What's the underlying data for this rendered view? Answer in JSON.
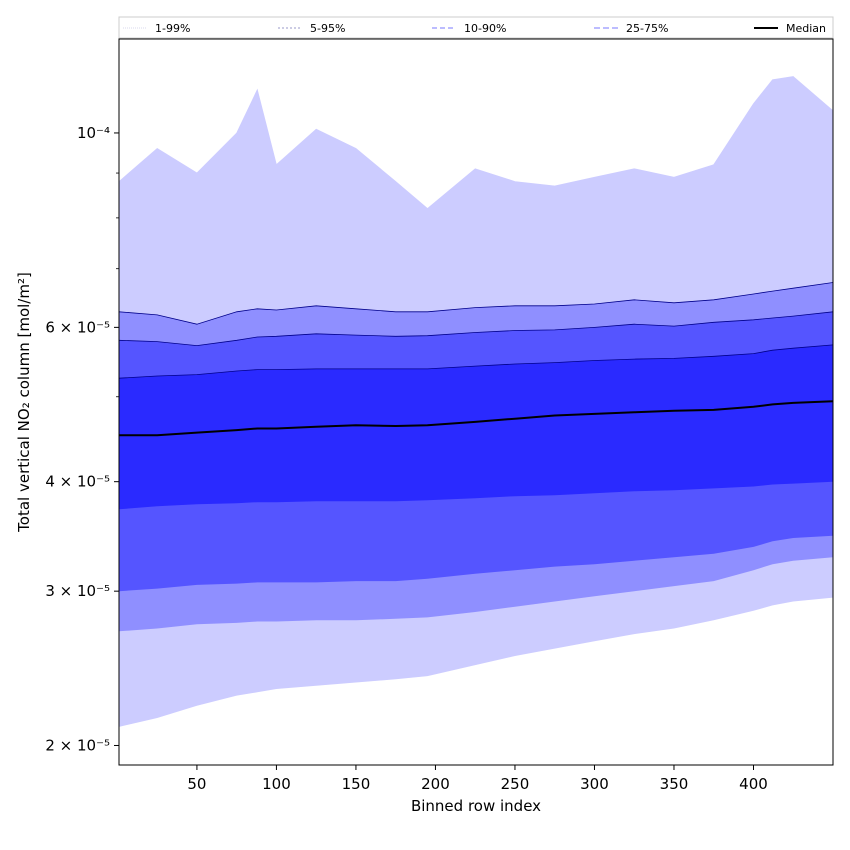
{
  "chart_data": {
    "type": "area",
    "title": "",
    "xlabel": "Binned row index",
    "ylabel": "Total vertical NO₂ column [mol/m²]",
    "xlim": [
      1,
      450
    ],
    "ylim": [
      1.9e-05,
      0.000128
    ],
    "yscale": "log",
    "x_ticks": [
      50,
      100,
      150,
      200,
      250,
      300,
      350,
      400
    ],
    "y_ticks": [
      {
        "value": 2e-05,
        "label": "2 × 10⁻⁵"
      },
      {
        "value": 3e-05,
        "label": "3 × 10⁻⁵"
      },
      {
        "value": 4e-05,
        "label": "4 × 10⁻⁵"
      },
      {
        "value": 6e-05,
        "label": "6 × 10⁻⁵"
      },
      {
        "value": 0.0001,
        "label": "10⁻⁴"
      }
    ],
    "grid": false,
    "legend_position": "top",
    "x": [
      1,
      25,
      50,
      75,
      88,
      100,
      125,
      150,
      175,
      195,
      225,
      250,
      275,
      300,
      325,
      350,
      375,
      400,
      412,
      425,
      450
    ],
    "bands": [
      {
        "name": "1-99%",
        "color": "#ccccff",
        "line_color": "#ccccff",
        "dash": "1,1",
        "lower": [
          2.1e-05,
          2.15e-05,
          2.22e-05,
          2.28e-05,
          2.3e-05,
          2.32e-05,
          2.34e-05,
          2.36e-05,
          2.38e-05,
          2.4e-05,
          2.47e-05,
          2.53e-05,
          2.58e-05,
          2.63e-05,
          2.68e-05,
          2.72e-05,
          2.78e-05,
          2.85e-05,
          2.89e-05,
          2.92e-05,
          2.95e-05
        ],
        "upper": [
          8.8e-05,
          9.6e-05,
          9e-05,
          0.0001,
          0.000112,
          9.2e-05,
          0.000101,
          9.6e-05,
          8.8e-05,
          8.2e-05,
          9.1e-05,
          8.8e-05,
          8.7e-05,
          8.9e-05,
          9.1e-05,
          8.9e-05,
          9.2e-05,
          0.000108,
          0.000115,
          0.000116,
          0.000106
        ]
      },
      {
        "name": "5-95%",
        "color": "#8f8fff",
        "line_color": "#00008b",
        "dash": "2,2",
        "lower": [
          2.7e-05,
          2.72e-05,
          2.75e-05,
          2.76e-05,
          2.77e-05,
          2.77e-05,
          2.78e-05,
          2.78e-05,
          2.79e-05,
          2.8e-05,
          2.84e-05,
          2.88e-05,
          2.92e-05,
          2.96e-05,
          3e-05,
          3.04e-05,
          3.08e-05,
          3.17e-05,
          3.22e-05,
          3.25e-05,
          3.28e-05
        ],
        "upper": [
          6.25e-05,
          6.2e-05,
          6.05e-05,
          6.25e-05,
          6.3e-05,
          6.28e-05,
          6.35e-05,
          6.3e-05,
          6.25e-05,
          6.25e-05,
          6.32e-05,
          6.35e-05,
          6.35e-05,
          6.38e-05,
          6.45e-05,
          6.4e-05,
          6.45e-05,
          6.55e-05,
          6.6e-05,
          6.65e-05,
          6.75e-05
        ]
      },
      {
        "name": "10-90%",
        "color": "#5555ff",
        "line_color": "#00008b",
        "dash": "5,3",
        "lower": [
          3e-05,
          3.02e-05,
          3.05e-05,
          3.06e-05,
          3.07e-05,
          3.07e-05,
          3.07e-05,
          3.08e-05,
          3.08e-05,
          3.1e-05,
          3.14e-05,
          3.17e-05,
          3.2e-05,
          3.22e-05,
          3.25e-05,
          3.28e-05,
          3.31e-05,
          3.37e-05,
          3.42e-05,
          3.45e-05,
          3.47e-05
        ],
        "upper": [
          5.8e-05,
          5.78e-05,
          5.72e-05,
          5.8e-05,
          5.85e-05,
          5.86e-05,
          5.9e-05,
          5.88e-05,
          5.86e-05,
          5.87e-05,
          5.92e-05,
          5.95e-05,
          5.96e-05,
          6e-05,
          6.05e-05,
          6.02e-05,
          6.08e-05,
          6.12e-05,
          6.15e-05,
          6.18e-05,
          6.25e-05
        ]
      },
      {
        "name": "25-75%",
        "color": "#2a2aff",
        "line_color": "#00008b",
        "dash": "6,3",
        "lower": [
          3.72e-05,
          3.75e-05,
          3.77e-05,
          3.78e-05,
          3.79e-05,
          3.79e-05,
          3.8e-05,
          3.8e-05,
          3.8e-05,
          3.81e-05,
          3.83e-05,
          3.85e-05,
          3.86e-05,
          3.88e-05,
          3.9e-05,
          3.91e-05,
          3.93e-05,
          3.95e-05,
          3.97e-05,
          3.98e-05,
          4e-05
        ],
        "upper": [
          5.25e-05,
          5.28e-05,
          5.3e-05,
          5.35e-05,
          5.37e-05,
          5.37e-05,
          5.38e-05,
          5.38e-05,
          5.38e-05,
          5.38e-05,
          5.42e-05,
          5.45e-05,
          5.47e-05,
          5.5e-05,
          5.52e-05,
          5.53e-05,
          5.56e-05,
          5.6e-05,
          5.65e-05,
          5.68e-05,
          5.73e-05
        ]
      }
    ],
    "median": {
      "name": "Median",
      "color": "#000000",
      "values": [
        4.52e-05,
        4.52e-05,
        4.55e-05,
        4.58e-05,
        4.6e-05,
        4.6e-05,
        4.62e-05,
        4.64e-05,
        4.63e-05,
        4.64e-05,
        4.68e-05,
        4.72e-05,
        4.76e-05,
        4.78e-05,
        4.8e-05,
        4.82e-05,
        4.83e-05,
        4.87e-05,
        4.9e-05,
        4.92e-05,
        4.94e-05
      ]
    }
  }
}
